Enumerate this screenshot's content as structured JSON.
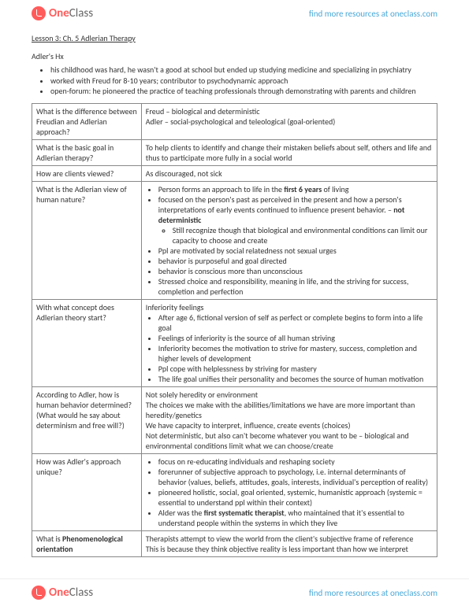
{
  "brand": {
    "name_one": "One",
    "name_class": "Class",
    "find": "find more resources at oneclass.com"
  },
  "title": "Lesson 3: Ch. 5 Adlerian Therapy",
  "subhead": "Adler's Hx",
  "intro": [
    "his childhood was hard, he wasn't a good at school but ended up studying medicine and specializing in psychiatry",
    "worked with Freud for 8-10 years; contributor to psychodynamic approach",
    "open-forum: he pioneered the practice of teaching professionals through demonstrating with parents and children"
  ],
  "rows": {
    "r1q": "What is the difference between Freudian and Adlerian approach?",
    "r1a1": "Freud – biological and deterministic",
    "r1a2": "Adler – social-psychological and teleological (goal-oriented)",
    "r2q": "What is the basic goal in Adlerian therapy?",
    "r2a": "To help clients to identify and change their mistaken beliefs about self, others and life and thus to participate more fully in a social world",
    "r3q": "How are clients viewed?",
    "r3a": "As discouraged, not sick",
    "r4q": "What is the Adlerian view of human nature?",
    "r4b1_pre": "Person forms an approach to life in the ",
    "r4b1_bold": "first 6 years",
    "r4b1_post": " of living",
    "r4b2_pre": "focused on the person's past as perceived in the present and how a person's interpretations of early events continued to influence present behavior. – ",
    "r4b2_bold": "not deterministic",
    "r4b2s": "Still recognize though that biological and environmental conditions can limit our capacity to choose and create",
    "r4b3": "Ppl are motivated by social relatedness not sexual urges",
    "r4b4": "behavior is purposeful and goal directed",
    "r4b5": "behavior is conscious more than unconscious",
    "r4b6": "Stressed choice and responsibility, meaning in life, and the striving for success, completion and perfection",
    "r5q": "With what concept does Adlerian theory start?",
    "r5lead": "Inferiority feelings",
    "r5b1": "After age 6, fictional version of self as perfect or complete begins to form into a life goal",
    "r5b2": "Feelings of inferiority is the source of all human striving",
    "r5b3": "Inferiority becomes the motivation to strive for mastery, success, completion and higher levels of development",
    "r5b4": "Ppl cope with helplessness by striving for mastery",
    "r5b5": "The life goal unifies their personality and becomes the source of human motivation",
    "r6q": "According to Adler, how is human behavior determined? (What would he say about determinism and free will?)",
    "r6a1": "Not solely heredity or environment",
    "r6a2": "The choices we make with the abilities/limitations we have are more important than heredity/genetics",
    "r6a3": "We have capacity to interpret, influence, create events (choices)",
    "r6a4": "Not deterministic, but also can't become whatever you want to be – biological and environmental conditions limit what we can choose/create",
    "r7q": "How was Adler's approach unique?",
    "r7b1": "focus on re-educating individuals and reshaping society",
    "r7b2": "forerunner of subjective approach to psychology, i.e. internal determinants of behavior (values, beliefs, attitudes, goals, interests, individual's perception of reality)",
    "r7b3": "pioneered holistic, social, goal oriented, systemic, humanistic approach (systemic = essential to understand ppl within their context)",
    "r7b4_pre": "Alder was the ",
    "r7b4_bold": "first systematic therapist",
    "r7b4_post": ", who maintained that it's essential to understand people within the systems in which they live",
    "r8q_pre": "What is ",
    "r8q_bold": "Phenomenological orientation",
    "r8a1": "Therapists attempt to view the world from the client's subjective frame of reference",
    "r8a2": "This is because they think objective reality is less important than how we interpret"
  }
}
